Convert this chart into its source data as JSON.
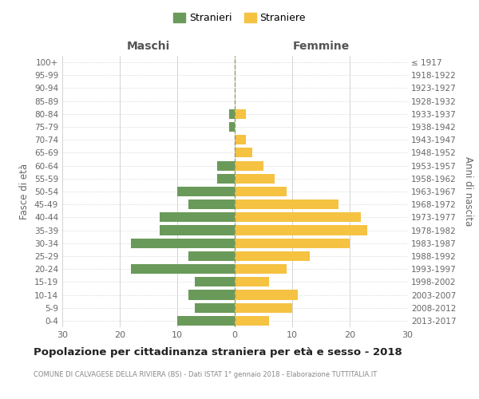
{
  "age_groups": [
    "100+",
    "95-99",
    "90-94",
    "85-89",
    "80-84",
    "75-79",
    "70-74",
    "65-69",
    "60-64",
    "55-59",
    "50-54",
    "45-49",
    "40-44",
    "35-39",
    "30-34",
    "25-29",
    "20-24",
    "15-19",
    "10-14",
    "5-9",
    "0-4"
  ],
  "birth_years": [
    "≤ 1917",
    "1918-1922",
    "1923-1927",
    "1928-1932",
    "1933-1937",
    "1938-1942",
    "1943-1947",
    "1948-1952",
    "1953-1957",
    "1958-1962",
    "1963-1967",
    "1968-1972",
    "1973-1977",
    "1978-1982",
    "1983-1987",
    "1988-1992",
    "1993-1997",
    "1998-2002",
    "2003-2007",
    "2008-2012",
    "2013-2017"
  ],
  "males": [
    0,
    0,
    0,
    0,
    1,
    1,
    0,
    0,
    3,
    3,
    10,
    8,
    13,
    13,
    18,
    8,
    18,
    7,
    8,
    7,
    10
  ],
  "females": [
    0,
    0,
    0,
    0,
    2,
    0,
    2,
    3,
    5,
    7,
    9,
    18,
    22,
    23,
    20,
    13,
    9,
    6,
    11,
    10,
    6
  ],
  "male_color": "#6a9a5a",
  "female_color": "#f5c242",
  "background_color": "#ffffff",
  "grid_color": "#cccccc",
  "title": "Popolazione per cittadinanza straniera per età e sesso - 2018",
  "subtitle": "COMUNE DI CALVAGESE DELLA RIVIERA (BS) - Dati ISTAT 1° gennaio 2018 - Elaborazione TUTTITALIA.IT",
  "xlabel_left": "Maschi",
  "xlabel_right": "Femmine",
  "ylabel_left": "Fasce di età",
  "ylabel_right": "Anni di nascita",
  "xlim": 30,
  "legend_stranieri": "Stranieri",
  "legend_straniere": "Straniere"
}
